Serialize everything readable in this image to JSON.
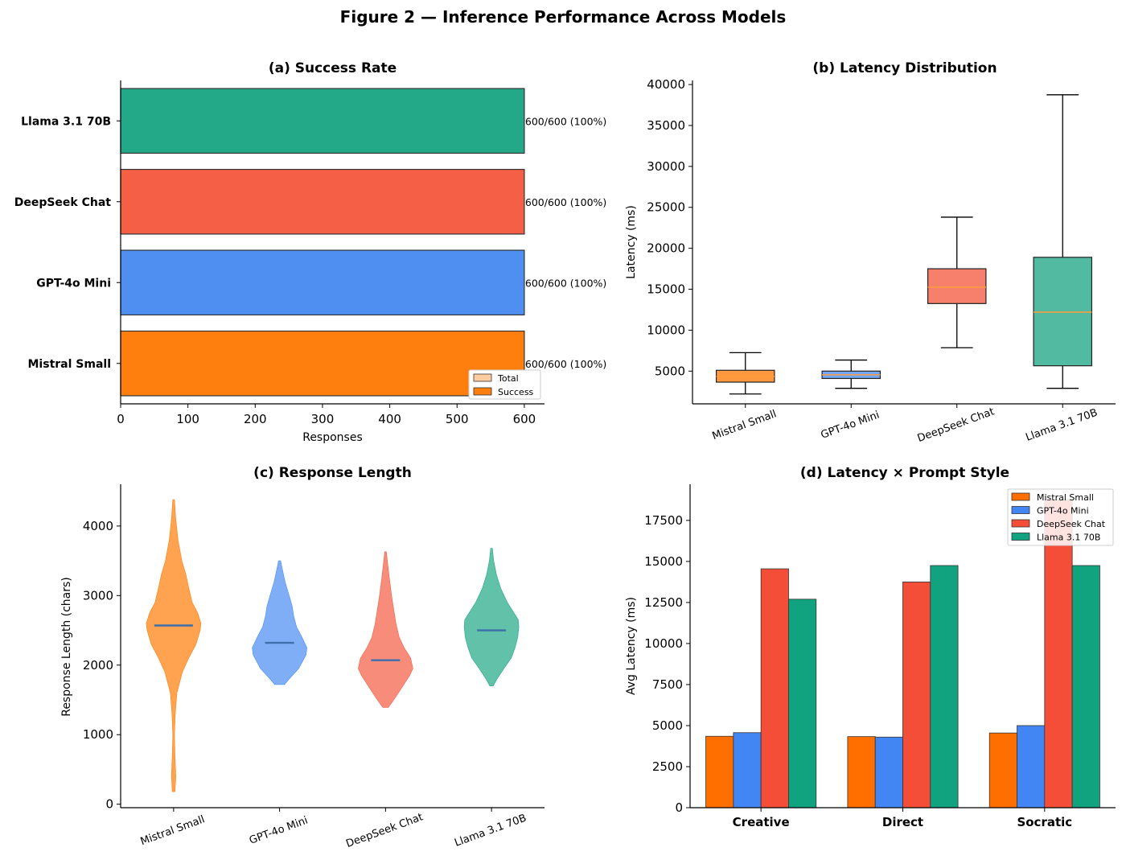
{
  "figure_title": "Figure 2 — Inference Performance Across Models",
  "colors": {
    "mistral": "#ff7f0e",
    "gpt": "#4f8ff2",
    "deepseek": "#f55f46",
    "llama": "#24a988",
    "median_line": "#3d6fad",
    "box_median": "#ff9d3a"
  },
  "chart_data": [
    {
      "id": "a",
      "type": "bar",
      "orientation": "horizontal",
      "title": "(a) Success Rate",
      "xlabel": "Responses",
      "ylabel": "",
      "xlim": [
        0,
        630
      ],
      "xticks": [
        0,
        100,
        200,
        300,
        400,
        500,
        600
      ],
      "categories": [
        "Mistral Small",
        "GPT-4o Mini",
        "DeepSeek Chat",
        "Llama 3.1 70B"
      ],
      "series": [
        {
          "name": "Total",
          "values": [
            600,
            600,
            600,
            600
          ]
        },
        {
          "name": "Success",
          "values": [
            600,
            600,
            600,
            600
          ]
        }
      ],
      "data_labels": [
        "600/600 (100%)",
        "600/600 (100%)",
        "600/600 (100%)",
        "600/600 (100%)"
      ],
      "legend": {
        "placement": "lower-right",
        "entries": [
          "Total",
          "Success"
        ]
      }
    },
    {
      "id": "b",
      "type": "box",
      "title": "(b) Latency Distribution",
      "xlabel": "",
      "ylabel": "Latency (ms)",
      "ylim": [
        1000,
        40500
      ],
      "yticks": [
        5000,
        10000,
        15000,
        20000,
        25000,
        30000,
        35000,
        40000
      ],
      "categories": [
        "Mistral Small",
        "GPT-4o Mini",
        "DeepSeek Chat",
        "Llama 3.1 70B"
      ],
      "boxes": [
        {
          "whisker_low": 2200,
          "q1": 3650,
          "median": 4350,
          "q3": 5100,
          "whisker_high": 7250
        },
        {
          "whisker_low": 2900,
          "q1": 4100,
          "median": 4550,
          "q3": 5000,
          "whisker_high": 6350
        },
        {
          "whisker_low": 7850,
          "q1": 13250,
          "median": 15250,
          "q3": 17500,
          "whisker_high": 23800
        },
        {
          "whisker_low": 2900,
          "q1": 5650,
          "median": 12200,
          "q3": 18900,
          "whisker_high": 38750
        }
      ]
    },
    {
      "id": "c",
      "type": "violin",
      "title": "(c) Response Length",
      "xlabel": "",
      "ylabel": "Response Length (chars)",
      "ylim": [
        -50,
        4600
      ],
      "yticks": [
        0,
        1000,
        2000,
        3000,
        4000
      ],
      "categories": [
        "Mistral Small",
        "GPT-4o Mini",
        "DeepSeek Chat",
        "Llama 3.1 70B"
      ],
      "violins": [
        {
          "median": 2570,
          "profile": [
            [
              180,
              0.05
            ],
            [
              400,
              0.08
            ],
            [
              700,
              0.05
            ],
            [
              1000,
              0.03
            ],
            [
              1300,
              0.06
            ],
            [
              1600,
              0.12
            ],
            [
              1900,
              0.32
            ],
            [
              2100,
              0.55
            ],
            [
              2300,
              0.82
            ],
            [
              2500,
              0.97
            ],
            [
              2600,
              1.0
            ],
            [
              2750,
              0.88
            ],
            [
              2900,
              0.68
            ],
            [
              3100,
              0.56
            ],
            [
              3300,
              0.45
            ],
            [
              3500,
              0.3
            ],
            [
              3800,
              0.16
            ],
            [
              4100,
              0.08
            ],
            [
              4380,
              0.03
            ]
          ]
        },
        {
          "median": 2320,
          "profile": [
            [
              1720,
              0.18
            ],
            [
              1800,
              0.35
            ],
            [
              1950,
              0.7
            ],
            [
              2150,
              0.97
            ],
            [
              2250,
              1.0
            ],
            [
              2400,
              0.82
            ],
            [
              2550,
              0.62
            ],
            [
              2700,
              0.52
            ],
            [
              2850,
              0.46
            ],
            [
              3000,
              0.35
            ],
            [
              3200,
              0.2
            ],
            [
              3400,
              0.09
            ],
            [
              3500,
              0.04
            ]
          ]
        },
        {
          "median": 2070,
          "profile": [
            [
              1390,
              0.1
            ],
            [
              1500,
              0.3
            ],
            [
              1650,
              0.55
            ],
            [
              1850,
              0.88
            ],
            [
              1950,
              1.0
            ],
            [
              2100,
              0.92
            ],
            [
              2250,
              0.68
            ],
            [
              2400,
              0.5
            ],
            [
              2600,
              0.38
            ],
            [
              2800,
              0.3
            ],
            [
              3000,
              0.22
            ],
            [
              3250,
              0.14
            ],
            [
              3450,
              0.08
            ],
            [
              3630,
              0.03
            ]
          ]
        },
        {
          "median": 2500,
          "profile": [
            [
              1700,
              0.06
            ],
            [
              1800,
              0.2
            ],
            [
              1950,
              0.45
            ],
            [
              2100,
              0.72
            ],
            [
              2250,
              0.86
            ],
            [
              2400,
              0.96
            ],
            [
              2550,
              1.0
            ],
            [
              2650,
              0.98
            ],
            [
              2750,
              0.82
            ],
            [
              2900,
              0.58
            ],
            [
              3100,
              0.34
            ],
            [
              3300,
              0.18
            ],
            [
              3500,
              0.08
            ],
            [
              3680,
              0.03
            ]
          ]
        }
      ]
    },
    {
      "id": "d",
      "type": "bar",
      "orientation": "vertical",
      "grouped": true,
      "title": "(d) Latency × Prompt Style",
      "xlabel": "",
      "ylabel": "Avg Latency (ms)",
      "ylim": [
        0,
        19700
      ],
      "yticks": [
        0,
        2500,
        5000,
        7500,
        10000,
        12500,
        15000,
        17500
      ],
      "ytick_labels": [
        "0",
        "2500",
        "5000",
        "7500",
        "10000",
        "12500",
        "15000",
        "17500"
      ],
      "categories": [
        "Creative",
        "Direct",
        "Socratic"
      ],
      "series": [
        {
          "name": "Mistral Small",
          "values": [
            4350,
            4330,
            4550
          ]
        },
        {
          "name": "GPT-4o Mini",
          "values": [
            4570,
            4300,
            5000
          ]
        },
        {
          "name": "DeepSeek Chat",
          "values": [
            14550,
            13750,
            18750
          ]
        },
        {
          "name": "Llama 3.1 70B",
          "values": [
            12700,
            14750,
            14750
          ]
        }
      ],
      "legend": {
        "placement": "top-right",
        "entries": [
          "Mistral Small",
          "GPT-4o Mini",
          "DeepSeek Chat",
          "Llama 3.1 70B"
        ]
      }
    }
  ]
}
